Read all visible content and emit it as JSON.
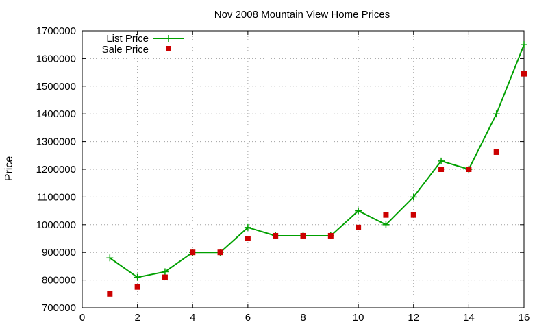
{
  "chart_data": {
    "type": "line",
    "title": "Nov 2008 Mountain View Home Prices",
    "xlabel": "",
    "ylabel": "Price",
    "xlim": [
      0,
      16
    ],
    "ylim": [
      700000,
      1700000
    ],
    "xticks": [
      0,
      2,
      4,
      6,
      8,
      10,
      12,
      14,
      16
    ],
    "yticks": [
      700000,
      800000,
      900000,
      1000000,
      1100000,
      1200000,
      1300000,
      1400000,
      1500000,
      1600000,
      1700000
    ],
    "grid": true,
    "legend_position": "top-left",
    "series": [
      {
        "name": "List Price",
        "style": "line+cross",
        "color": "#00a000",
        "points": [
          [
            1,
            880000
          ],
          [
            2,
            810000
          ],
          [
            3,
            830000
          ],
          [
            4,
            900000
          ],
          [
            5,
            900000
          ],
          [
            6,
            990000
          ],
          [
            7,
            960000
          ],
          [
            8,
            960000
          ],
          [
            9,
            960000
          ],
          [
            10,
            1050000
          ],
          [
            11,
            1000000
          ],
          [
            12,
            1100000
          ],
          [
            13,
            1230000
          ],
          [
            14,
            1200000
          ],
          [
            15,
            1400000
          ],
          [
            16,
            1650000
          ]
        ]
      },
      {
        "name": "Sale Price",
        "style": "square",
        "color": "#cc0000",
        "points": [
          [
            1,
            750000
          ],
          [
            2,
            775000
          ],
          [
            3,
            810000
          ],
          [
            4,
            900000
          ],
          [
            5,
            900000
          ],
          [
            6,
            950000
          ],
          [
            7,
            960000
          ],
          [
            8,
            960000
          ],
          [
            9,
            960000
          ],
          [
            10,
            990000
          ],
          [
            11,
            1035000
          ],
          [
            12,
            1035000
          ],
          [
            13,
            1200000
          ],
          [
            14,
            1200000
          ],
          [
            15,
            1262000
          ],
          [
            16,
            1545000
          ]
        ]
      }
    ]
  }
}
